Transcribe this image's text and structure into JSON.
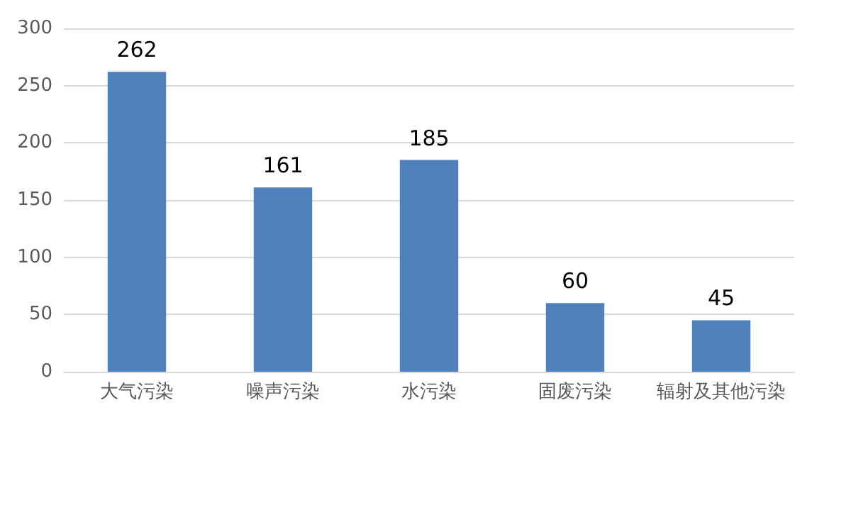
{
  "chart_data": {
    "type": "bar",
    "categories": [
      "大气污染",
      "噪声污染",
      "水污染",
      "固废污染",
      "辐射及其他污染"
    ],
    "values": [
      262,
      161,
      185,
      60,
      45
    ],
    "color": "#4f81bd",
    "ylim": [
      0,
      300
    ],
    "yticks": [
      0,
      50,
      100,
      150,
      200,
      250,
      300
    ],
    "grid": "y",
    "data_labels": true
  }
}
